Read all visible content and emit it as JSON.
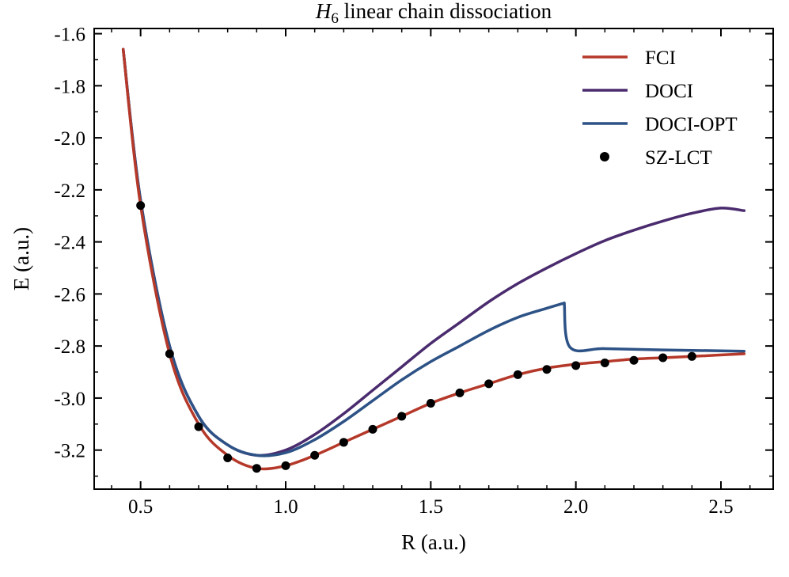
{
  "chart_data": {
    "type": "line",
    "title_symbol": "H",
    "title_subscript": "6",
    "title_rest": " linear chain dissociation",
    "xlabel": "R (a.u.)",
    "ylabel": "E (a.u.)",
    "xlim": [
      0.34,
      2.68
    ],
    "ylim": [
      -3.35,
      -1.58
    ],
    "xticks": [
      0.5,
      1.0,
      1.5,
      2.0,
      2.5
    ],
    "xtick_labels": [
      "0.5",
      "1.0",
      "1.5",
      "2.0",
      "2.5"
    ],
    "yticks": [
      -3.2,
      -3.0,
      -2.8,
      -2.6,
      -2.4,
      -2.2,
      -2.0,
      -1.8,
      -1.6
    ],
    "ytick_labels": [
      "-3.2",
      "-3.0",
      "-2.8",
      "-2.6",
      "-2.4",
      "-2.2",
      "-2.0",
      "-1.8",
      "-1.6"
    ],
    "grid": false,
    "legend_position": "top-right",
    "series": [
      {
        "name": "FCI",
        "kind": "line",
        "color": "#b5392a",
        "x": [
          0.44,
          0.5,
          0.6,
          0.7,
          0.8,
          0.9,
          1.0,
          1.1,
          1.2,
          1.3,
          1.4,
          1.5,
          1.6,
          1.7,
          1.8,
          1.9,
          2.0,
          2.1,
          2.2,
          2.3,
          2.4,
          2.58
        ],
        "y": [
          -1.66,
          -2.26,
          -2.83,
          -3.1,
          -3.22,
          -3.27,
          -3.26,
          -3.22,
          -3.17,
          -3.12,
          -3.07,
          -3.02,
          -2.98,
          -2.945,
          -2.91,
          -2.885,
          -2.87,
          -2.86,
          -2.85,
          -2.845,
          -2.84,
          -2.83
        ]
      },
      {
        "name": "DOCI",
        "kind": "line",
        "color": "#4a2b6e",
        "x": [
          0.44,
          0.5,
          0.6,
          0.7,
          0.8,
          0.9,
          1.0,
          1.1,
          1.2,
          1.3,
          1.4,
          1.5,
          1.6,
          1.7,
          1.8,
          1.9,
          2.0,
          2.1,
          2.2,
          2.3,
          2.4,
          2.5,
          2.58
        ],
        "y": [
          -1.66,
          -2.24,
          -2.8,
          -3.07,
          -3.18,
          -3.22,
          -3.2,
          -3.14,
          -3.06,
          -2.97,
          -2.88,
          -2.79,
          -2.71,
          -2.63,
          -2.56,
          -2.5,
          -2.445,
          -2.395,
          -2.355,
          -2.32,
          -2.29,
          -2.27,
          -2.28
        ]
      },
      {
        "name": "DOCI-OPT",
        "kind": "line",
        "color": "#2d5286",
        "x": [
          0.44,
          0.5,
          0.6,
          0.7,
          0.8,
          0.9,
          1.0,
          1.1,
          1.2,
          1.3,
          1.4,
          1.5,
          1.6,
          1.7,
          1.8,
          1.9,
          1.96,
          1.98,
          2.1,
          2.3,
          2.58
        ],
        "y": [
          -1.66,
          -2.24,
          -2.8,
          -3.07,
          -3.18,
          -3.22,
          -3.21,
          -3.16,
          -3.09,
          -3.01,
          -2.93,
          -2.86,
          -2.8,
          -2.74,
          -2.69,
          -2.655,
          -2.635,
          -2.805,
          -2.81,
          -2.815,
          -2.82
        ]
      },
      {
        "name": "SZ-LCT",
        "kind": "scatter",
        "color": "#000000",
        "x": [
          0.5,
          0.6,
          0.7,
          0.8,
          0.9,
          1.0,
          1.1,
          1.2,
          1.3,
          1.4,
          1.5,
          1.6,
          1.7,
          1.8,
          1.9,
          2.0,
          2.1,
          2.2,
          2.3,
          2.4
        ],
        "y": [
          -2.26,
          -2.83,
          -3.11,
          -3.23,
          -3.27,
          -3.26,
          -3.22,
          -3.17,
          -3.12,
          -3.07,
          -3.02,
          -2.98,
          -2.945,
          -2.91,
          -2.89,
          -2.875,
          -2.865,
          -2.855,
          -2.845,
          -2.84
        ]
      }
    ]
  }
}
